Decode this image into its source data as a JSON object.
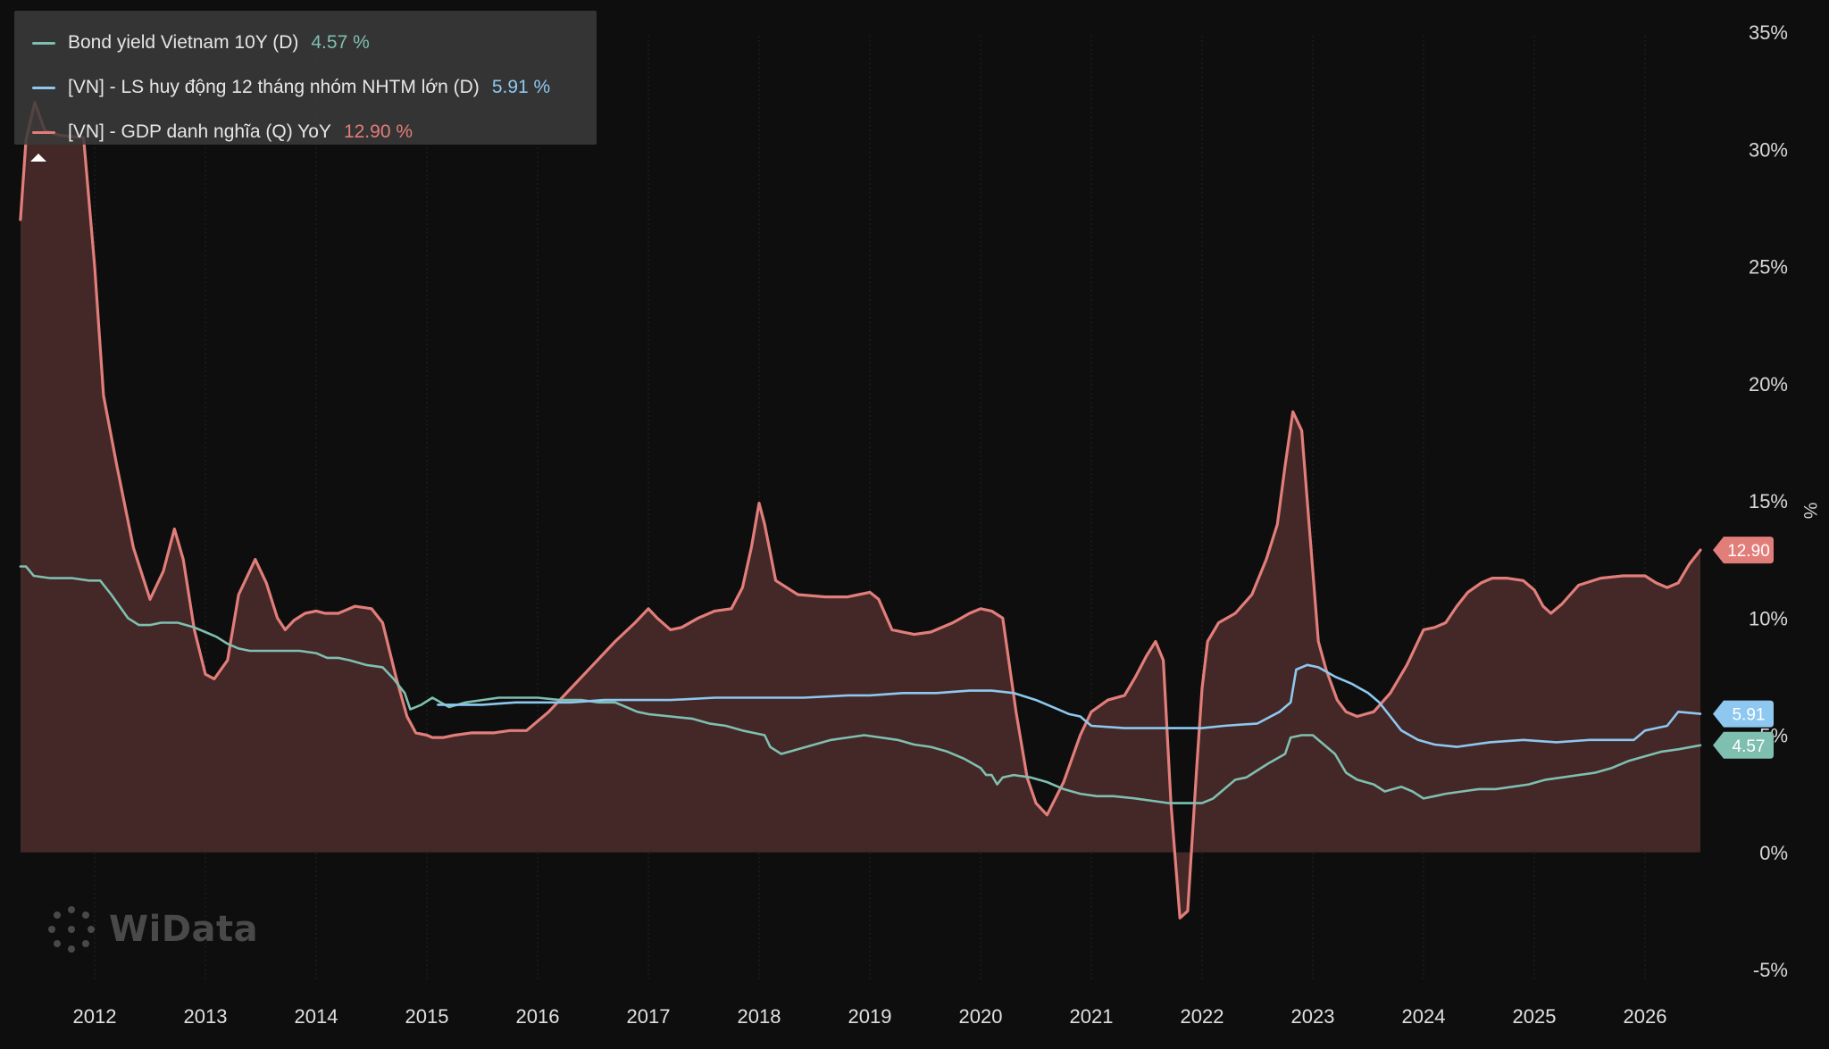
{
  "legend": {
    "items": [
      {
        "name": "Bond yield Vietnam 10Y (D)",
        "value": "4.57 %",
        "color": "#7fbfb0"
      },
      {
        "name": "[VN] - LS huy động 12 tháng nhóm NHTM lớn (D)",
        "value": "5.91 %",
        "color": "#8ec8f0"
      },
      {
        "name": "[VN] - GDP danh nghĩa (Q) YoY",
        "value": "12.90 %",
        "color": "#e27e7a"
      }
    ]
  },
  "watermark": "WiData",
  "chart_data": {
    "type": "line",
    "ylabel": "%",
    "ylim": [
      -5,
      35
    ],
    "y_ticks": [
      "35%",
      "30%",
      "25%",
      "20%",
      "15%",
      "10%",
      "5%",
      "0%",
      "-5%"
    ],
    "x_ticks": [
      "2012",
      "2013",
      "2014",
      "2015",
      "2016",
      "2017",
      "2018",
      "2019",
      "2020",
      "2021",
      "2022",
      "2023",
      "2024",
      "2025",
      "2026"
    ],
    "xlim": [
      2011.33,
      2026.5
    ],
    "grid": "vertical",
    "legend_position": "top-left",
    "series": [
      {
        "name": "[VN] - GDP danh nghĩa (Q) YoY",
        "color": "#e27e7a",
        "fill": "#4a2a2a",
        "last_label": "12.90",
        "x": [
          2011.33,
          2011.38,
          2011.46,
          2011.55,
          2011.68,
          2011.9,
          2012.0,
          2012.08,
          2012.2,
          2012.35,
          2012.5,
          2012.62,
          2012.72,
          2012.8,
          2012.9,
          2013.0,
          2013.08,
          2013.2,
          2013.3,
          2013.45,
          2013.55,
          2013.65,
          2013.72,
          2013.8,
          2013.9,
          2014.0,
          2014.08,
          2014.2,
          2014.35,
          2014.5,
          2014.6,
          2014.72,
          2014.82,
          2014.9,
          2015.0,
          2015.05,
          2015.1,
          2015.15,
          2015.25,
          2015.4,
          2015.6,
          2015.75,
          2015.9,
          2016.0,
          2016.1,
          2016.3,
          2016.5,
          2016.7,
          2016.88,
          2017.0,
          2017.08,
          2017.2,
          2017.3,
          2017.45,
          2017.6,
          2017.75,
          2017.85,
          2017.93,
          2018.0,
          2018.05,
          2018.15,
          2018.35,
          2018.6,
          2018.8,
          2018.9,
          2019.0,
          2019.08,
          2019.2,
          2019.4,
          2019.55,
          2019.75,
          2019.9,
          2020.0,
          2020.1,
          2020.2,
          2020.32,
          2020.42,
          2020.5,
          2020.6,
          2020.75,
          2020.9,
          2021.0,
          2021.15,
          2021.3,
          2021.4,
          2021.5,
          2021.58,
          2021.65,
          2021.72,
          2021.8,
          2021.87,
          2021.95,
          2022.0,
          2022.05,
          2022.15,
          2022.3,
          2022.45,
          2022.58,
          2022.68,
          2022.75,
          2022.82,
          2022.9,
          2023.0,
          2023.05,
          2023.12,
          2023.22,
          2023.3,
          2023.4,
          2023.55,
          2023.7,
          2023.85,
          2024.0,
          2024.1,
          2024.2,
          2024.3,
          2024.4,
          2024.52,
          2024.62,
          2024.75,
          2024.9,
          2025.0,
          2025.08,
          2025.15,
          2025.25,
          2025.4,
          2025.6,
          2025.8,
          2025.9,
          2026.0,
          2026.1,
          2026.2,
          2026.3,
          2026.4,
          2026.5
        ],
        "y": [
          27.0,
          30.4,
          32.0,
          30.8,
          30.6,
          30.5,
          25.0,
          19.5,
          16.5,
          13.0,
          10.8,
          12.0,
          13.8,
          12.5,
          9.5,
          7.6,
          7.4,
          8.2,
          11.0,
          12.5,
          11.5,
          10.0,
          9.5,
          9.9,
          10.2,
          10.3,
          10.2,
          10.2,
          10.5,
          10.4,
          9.8,
          7.5,
          5.8,
          5.1,
          5.0,
          4.9,
          4.9,
          4.9,
          5.0,
          5.1,
          5.1,
          5.2,
          5.2,
          5.6,
          6.0,
          7.0,
          8.0,
          9.0,
          9.8,
          10.4,
          10.0,
          9.5,
          9.6,
          10.0,
          10.3,
          10.4,
          11.3,
          13.0,
          14.9,
          14.0,
          11.6,
          11.0,
          10.9,
          10.9,
          11.0,
          11.1,
          10.8,
          9.5,
          9.3,
          9.4,
          9.8,
          10.2,
          10.4,
          10.3,
          10.0,
          6.0,
          3.2,
          2.1,
          1.6,
          3.0,
          5.0,
          6.0,
          6.5,
          6.7,
          7.5,
          8.4,
          9.0,
          8.2,
          2.0,
          -2.8,
          -2.5,
          3.5,
          7.0,
          9.0,
          9.8,
          10.2,
          11.0,
          12.5,
          14.0,
          16.5,
          18.8,
          18.0,
          12.0,
          9.0,
          7.8,
          6.5,
          6.0,
          5.8,
          6.0,
          6.8,
          8.0,
          9.5,
          9.6,
          9.8,
          10.5,
          11.1,
          11.5,
          11.7,
          11.7,
          11.6,
          11.2,
          10.5,
          10.2,
          10.6,
          11.4,
          11.7,
          11.8,
          11.8,
          11.8,
          11.5,
          11.3,
          11.5,
          12.3,
          12.9
        ]
      },
      {
        "name": "Bond yield Vietnam 10Y (D)",
        "color": "#7fbfb0",
        "last_label": "4.57",
        "x": [
          2011.33,
          2011.38,
          2011.45,
          2011.6,
          2011.8,
          2011.95,
          2012.05,
          2012.15,
          2012.3,
          2012.4,
          2012.5,
          2012.6,
          2012.75,
          2012.9,
          2013.0,
          2013.1,
          2013.2,
          2013.3,
          2013.4,
          2013.55,
          2013.7,
          2013.85,
          2014.0,
          2014.1,
          2014.2,
          2014.3,
          2014.45,
          2014.6,
          2014.7,
          2014.8,
          2014.85,
          2014.95,
          2015.05,
          2015.2,
          2015.35,
          2015.5,
          2015.65,
          2015.8,
          2016.0,
          2016.2,
          2016.4,
          2016.55,
          2016.7,
          2016.8,
          2016.9,
          2017.0,
          2017.2,
          2017.4,
          2017.55,
          2017.7,
          2017.85,
          2017.95,
          2018.05,
          2018.1,
          2018.2,
          2018.35,
          2018.5,
          2018.65,
          2018.8,
          2018.95,
          2019.1,
          2019.25,
          2019.4,
          2019.55,
          2019.7,
          2019.85,
          2020.0,
          2020.05,
          2020.1,
          2020.15,
          2020.2,
          2020.3,
          2020.45,
          2020.6,
          2020.75,
          2020.9,
          2021.05,
          2021.2,
          2021.4,
          2021.55,
          2021.7,
          2021.8,
          2021.9,
          2022.0,
          2022.1,
          2022.2,
          2022.3,
          2022.4,
          2022.5,
          2022.6,
          2022.75,
          2022.8,
          2022.9,
          2023.0,
          2023.1,
          2023.2,
          2023.3,
          2023.4,
          2023.55,
          2023.65,
          2023.8,
          2023.9,
          2024.0,
          2024.1,
          2024.2,
          2024.35,
          2024.5,
          2024.65,
          2024.8,
          2024.95,
          2025.1,
          2025.25,
          2025.4,
          2025.55,
          2025.7,
          2025.85,
          2026.0,
          2026.15,
          2026.3,
          2026.5
        ],
        "y": [
          12.2,
          12.2,
          11.8,
          11.7,
          11.7,
          11.6,
          11.6,
          11.0,
          10.0,
          9.7,
          9.7,
          9.8,
          9.8,
          9.6,
          9.4,
          9.2,
          8.9,
          8.7,
          8.6,
          8.6,
          8.6,
          8.6,
          8.5,
          8.3,
          8.3,
          8.2,
          8.0,
          7.9,
          7.4,
          6.8,
          6.1,
          6.3,
          6.6,
          6.2,
          6.4,
          6.5,
          6.6,
          6.6,
          6.6,
          6.5,
          6.5,
          6.4,
          6.4,
          6.2,
          6.0,
          5.9,
          5.8,
          5.7,
          5.5,
          5.4,
          5.2,
          5.1,
          5.0,
          4.5,
          4.2,
          4.4,
          4.6,
          4.8,
          4.9,
          5.0,
          4.9,
          4.8,
          4.6,
          4.5,
          4.3,
          4.0,
          3.6,
          3.3,
          3.3,
          2.9,
          3.2,
          3.3,
          3.2,
          3.0,
          2.7,
          2.5,
          2.4,
          2.4,
          2.3,
          2.2,
          2.1,
          2.1,
          2.1,
          2.1,
          2.3,
          2.7,
          3.1,
          3.2,
          3.5,
          3.8,
          4.2,
          4.9,
          5.0,
          5.0,
          4.6,
          4.2,
          3.4,
          3.1,
          2.9,
          2.6,
          2.8,
          2.6,
          2.3,
          2.4,
          2.5,
          2.6,
          2.7,
          2.7,
          2.8,
          2.9,
          3.1,
          3.2,
          3.3,
          3.4,
          3.6,
          3.9,
          4.1,
          4.3,
          4.4,
          4.57
        ]
      },
      {
        "name": "[VN] - LS huy động 12 tháng nhóm NHTM lớn (D)",
        "color": "#8ec8f0",
        "last_label": "5.91",
        "x": [
          2015.1,
          2015.3,
          2015.5,
          2015.8,
          2016.0,
          2016.3,
          2016.6,
          2016.9,
          2017.2,
          2017.6,
          2018.0,
          2018.4,
          2018.8,
          2019.0,
          2019.3,
          2019.6,
          2019.9,
          2020.1,
          2020.3,
          2020.5,
          2020.7,
          2020.8,
          2020.9,
          2021.0,
          2021.3,
          2021.6,
          2021.9,
          2022.0,
          2022.2,
          2022.5,
          2022.7,
          2022.8,
          2022.85,
          2022.95,
          2023.05,
          2023.2,
          2023.35,
          2023.5,
          2023.6,
          2023.7,
          2023.8,
          2023.95,
          2024.1,
          2024.3,
          2024.6,
          2024.9,
          2025.2,
          2025.5,
          2025.8,
          2025.9,
          2026.0,
          2026.1,
          2026.2,
          2026.3,
          2026.5
        ],
        "y": [
          6.3,
          6.3,
          6.3,
          6.4,
          6.4,
          6.4,
          6.5,
          6.5,
          6.5,
          6.6,
          6.6,
          6.6,
          6.7,
          6.7,
          6.8,
          6.8,
          6.9,
          6.9,
          6.8,
          6.5,
          6.1,
          5.9,
          5.8,
          5.4,
          5.3,
          5.3,
          5.3,
          5.3,
          5.4,
          5.5,
          6.0,
          6.4,
          7.8,
          8.0,
          7.9,
          7.5,
          7.2,
          6.8,
          6.4,
          5.8,
          5.2,
          4.8,
          4.6,
          4.5,
          4.7,
          4.8,
          4.7,
          4.8,
          4.8,
          4.8,
          5.2,
          5.3,
          5.4,
          6.0,
          5.91
        ]
      }
    ]
  }
}
